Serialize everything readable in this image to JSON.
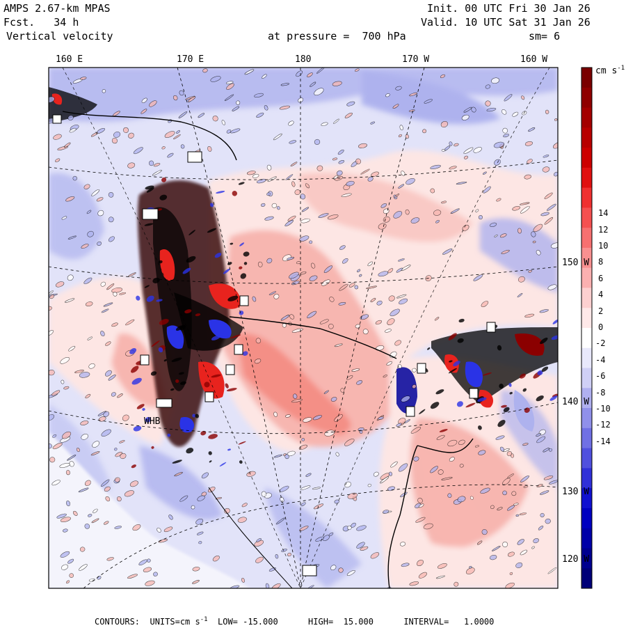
{
  "header": {
    "model": "AMPS 2.67-km MPAS",
    "forecast": "Fcst.   34 h",
    "field": "Vertical velocity",
    "init": "Init. 00 UTC Fri 30 Jan 26",
    "valid": "Valid. 10 UTC Sat 31 Jan 26",
    "level": "at pressure =  700 hPa",
    "smoothing": "sm= 6"
  },
  "map": {
    "top_longitudes": [
      "160 E",
      "170 E",
      "180",
      "170 W",
      "160 W"
    ],
    "right_latitudes": [
      "150 W",
      "140 W",
      "130 W",
      "120 W"
    ],
    "small_labels": [
      "WHB"
    ],
    "colors": {
      "dark_red": "#8b0000",
      "red": "#e8231e",
      "light_red": "#f7b6b0",
      "pale_red": "#fde6e4",
      "white": "#ffffff",
      "pale_blue": "#e2e3f9",
      "light_blue": "#aeb2ee",
      "blue": "#2a33e6",
      "dark_blue": "#00009a"
    }
  },
  "colorbar": {
    "units": "cm s",
    "units_exponent": "-1",
    "ticks": [
      "14",
      "12",
      "10",
      "8",
      "6",
      "4",
      "2",
      "0",
      "-2",
      "-4",
      "-6",
      "-8",
      "-10",
      "-12",
      "-14"
    ],
    "colors": [
      "#7a0000",
      "#8f0000",
      "#a40000",
      "#b80000",
      "#cc0000",
      "#e01010",
      "#f03030",
      "#f55050",
      "#f77070",
      "#f99090",
      "#fbb0b0",
      "#fdd0d0",
      "#fee8e8",
      "#ffffff",
      "#e8e8fb",
      "#d0d0f6",
      "#b0b0f0",
      "#9090ea",
      "#7070e4",
      "#5050de",
      "#3030d8",
      "#1010d0",
      "#0000c0",
      "#0000a8",
      "#000090",
      "#000078"
    ]
  },
  "footer": {
    "text": "CONTOURS:  UNITS=cm s",
    "exponent": "-1",
    "stats": "  LOW= -15.000      HIGH=  15.000      INTERVAL=   1.0000"
  }
}
